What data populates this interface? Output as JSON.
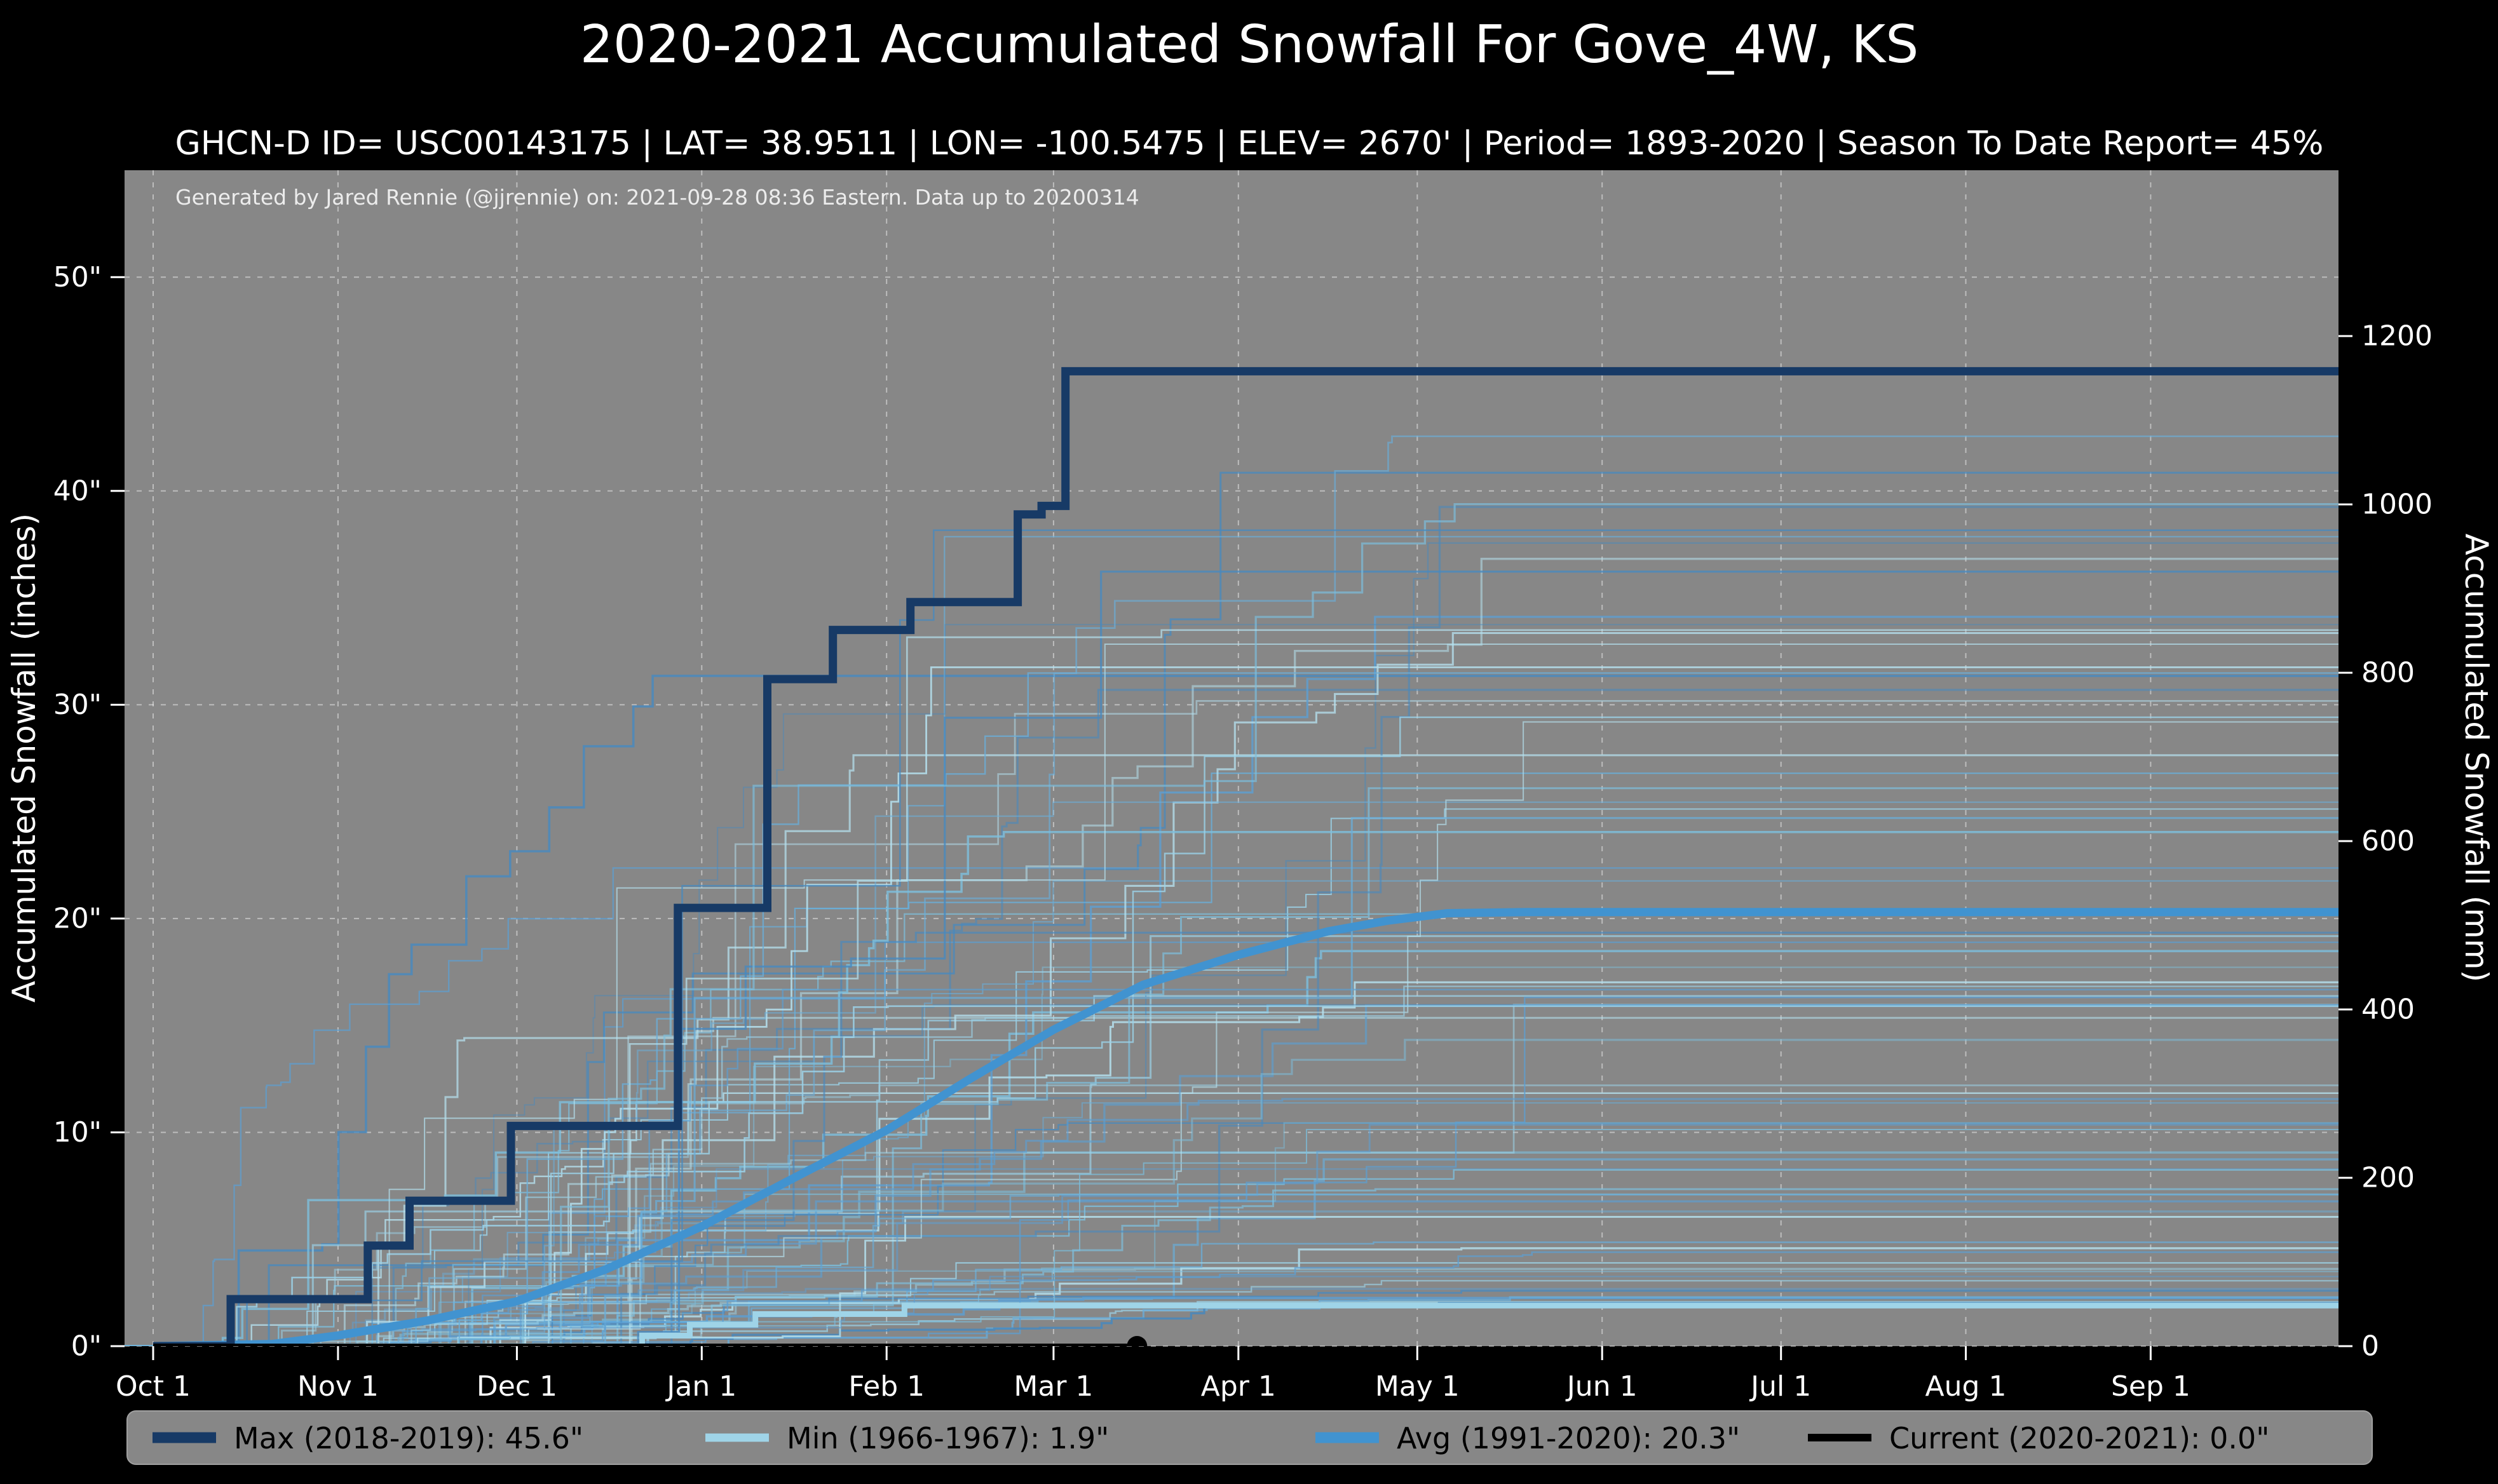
{
  "page": {
    "title": "2020-2021 Accumulated Snowfall For Gove_4W, KS",
    "subtitle": "GHCN-D ID= USC00143175 | LAT= 38.9511 | LON= -100.5475 | ELEV= 2670' | Period= 1893-2020 | Season To Date Report= 45%"
  },
  "chart_data": {
    "type": "line",
    "title": "2020-2021 Accumulated Snowfall For Gove_4W, KS",
    "subtitle": "GHCN-D ID= USC00143175 | LAT= 38.9511 | LON= -100.5475 | ELEV= 2670' | Period= 1893-2020 | Season To Date Report= 45%",
    "annotation": "Generated by Jared Rennie (@jjrennie) on: 2021-09-28 08:36 Eastern. Data up to 20200314",
    "xlabel": "",
    "ylabel_left": "Accumulated Snowfall (inches)",
    "ylabel_right": "Accumulated Snowfall (mm)",
    "x_tick_labels": [
      "Oct 1",
      "Nov 1",
      "Dec 1",
      "Jan 1",
      "Feb 1",
      "Mar 1",
      "Apr 1",
      "May 1",
      "Jun 1",
      "Jul 1",
      "Aug 1",
      "Sep 1"
    ],
    "x_tick_days": [
      0,
      31,
      61,
      92,
      123,
      151,
      182,
      212,
      243,
      273,
      304,
      335
    ],
    "xlim_days": [
      -4.8,
      366.5
    ],
    "ylim_inches": [
      0,
      55
    ],
    "y_left_ticks_inches": [
      0,
      10,
      20,
      30,
      40,
      50
    ],
    "y_left_tick_labels": [
      "0\"",
      "10\"",
      "20\"",
      "30\"",
      "40\"",
      "50\""
    ],
    "y_right_ticks_mm": [
      0,
      200,
      400,
      600,
      800,
      1000,
      1200
    ],
    "mm_per_inch": 25.4,
    "grid": true,
    "legend_position": "bottom",
    "colors": {
      "background": "#000000",
      "plot_background": "#878787",
      "grid": "rgba(255,255,255,0.45)",
      "tick_text": "#ffffff",
      "title_text": "#ffffff",
      "annotation_text": "#ececec",
      "legend_background": "#878787",
      "legend_border": "#a0a0a0",
      "legend_text": "#000000"
    },
    "series": [
      {
        "name": "max",
        "legend_label": "Max (2018-2019):   45.6\"",
        "final_value_inches": 45.6,
        "color": "#173a66",
        "width": 13,
        "style": "step",
        "zorder": 4,
        "points": [
          [
            0,
            0
          ],
          [
            13,
            2.2
          ],
          [
            36,
            4.7
          ],
          [
            43,
            6.8
          ],
          [
            60,
            10.3
          ],
          [
            88,
            20.5
          ],
          [
            103,
            31.2
          ],
          [
            114,
            33.5
          ],
          [
            127,
            34.8
          ],
          [
            145,
            38.9
          ],
          [
            149,
            39.3
          ],
          [
            153,
            45.6
          ],
          [
            366.5,
            45.6
          ]
        ]
      },
      {
        "name": "min",
        "legend_label": "Min (1966-1967):    1.9\"",
        "final_value_inches": 1.9,
        "color": "#9fd4e8",
        "width": 9,
        "style": "step",
        "zorder": 2,
        "points": [
          [
            0,
            0
          ],
          [
            82,
            0.5
          ],
          [
            90,
            1.0
          ],
          [
            101,
            1.5
          ],
          [
            126,
            1.9
          ],
          [
            366.5,
            1.9
          ]
        ]
      },
      {
        "name": "avg",
        "legend_label": "Avg (1991-2020):   20.3\"",
        "final_value_inches": 20.3,
        "color": "#4193d0",
        "width": 13,
        "style": "linear",
        "zorder": 3,
        "points": [
          [
            0,
            0
          ],
          [
            20,
            0.1
          ],
          [
            31,
            0.5
          ],
          [
            46,
            1.2
          ],
          [
            61,
            2.1
          ],
          [
            76,
            3.6
          ],
          [
            92,
            5.6
          ],
          [
            107,
            7.8
          ],
          [
            123,
            10.1
          ],
          [
            137,
            12.5
          ],
          [
            151,
            14.8
          ],
          [
            166,
            16.9
          ],
          [
            182,
            18.3
          ],
          [
            197,
            19.4
          ],
          [
            207,
            19.9
          ],
          [
            217,
            20.25
          ],
          [
            230,
            20.3
          ],
          [
            366.5,
            20.3
          ]
        ]
      },
      {
        "name": "current",
        "legend_label": "Current (2020-2021): 0.0\"",
        "final_value_inches": 0.0,
        "color": "#000000",
        "width": 8,
        "style": "step",
        "zorder": 5,
        "end_marker": true,
        "end_marker_day": 165,
        "points": [
          [
            0,
            0
          ],
          [
            165,
            0
          ]
        ]
      }
    ],
    "ensemble": {
      "description": "Thin background lines: individual historical seasons 1893-2020 (approximate shapes)",
      "count": 80,
      "seed": 1893,
      "total_range_inches": [
        2,
        46
      ],
      "palette": [
        "#5b9fd4",
        "#7cbfde",
        "#9bd2e8",
        "#4689c0",
        "#b5e1ef",
        "#69aeda"
      ]
    }
  }
}
